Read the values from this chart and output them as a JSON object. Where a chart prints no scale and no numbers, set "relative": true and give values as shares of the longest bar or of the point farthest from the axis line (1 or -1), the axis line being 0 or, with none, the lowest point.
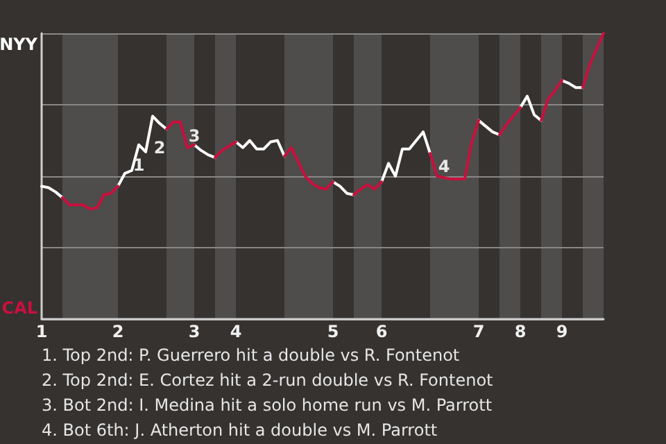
{
  "chart_data": {
    "type": "line",
    "relative": true,
    "categories": [
      "1",
      null,
      null,
      null,
      null,
      null,
      null,
      null,
      null,
      null,
      null,
      "2",
      null,
      null,
      null,
      null,
      null,
      null,
      null,
      null,
      null,
      null,
      "3",
      null,
      null,
      null,
      null,
      null,
      "4",
      null,
      null,
      null,
      null,
      null,
      null,
      null,
      null,
      null,
      null,
      null,
      null,
      null,
      "5",
      null,
      null,
      null,
      null,
      null,
      null,
      "6",
      null,
      null,
      null,
      null,
      null,
      null,
      null,
      null,
      null,
      null,
      null,
      null,
      null,
      "7",
      null,
      null,
      null,
      null,
      null,
      "8",
      null,
      null,
      null,
      null,
      null,
      "9",
      null,
      null,
      null,
      null,
      null,
      null
    ],
    "series": [
      {
        "name": "NYY",
        "color": "#ffffff",
        "values": [
          0.465,
          0.46,
          0.445,
          0.425,
          null,
          null,
          null,
          null,
          null,
          null,
          null,
          0.465,
          0.51,
          0.52,
          0.61,
          0.585,
          0.71,
          0.685,
          0.665,
          null,
          null,
          null,
          0.61,
          0.59,
          0.575,
          0.565,
          null,
          null,
          0.62,
          0.6,
          0.625,
          0.595,
          0.595,
          0.62,
          0.625,
          0.57,
          null,
          null,
          null,
          null,
          null,
          null,
          0.48,
          0.465,
          0.44,
          0.435,
          null,
          null,
          null,
          0.48,
          0.545,
          0.5,
          0.595,
          0.595,
          0.625,
          0.655,
          0.58,
          null,
          null,
          null,
          null,
          null,
          null,
          0.695,
          0.675,
          0.655,
          0.645,
          null,
          null,
          0.74,
          0.78,
          0.715,
          0.695,
          null,
          null,
          0.835,
          0.825,
          0.81,
          0.81,
          null,
          null,
          null
        ]
      },
      {
        "name": "CAL",
        "color": "#c8103e",
        "values": [
          null,
          null,
          null,
          0.425,
          0.4,
          0.4,
          0.4,
          0.385,
          0.39,
          0.435,
          0.44,
          0.465,
          null,
          null,
          null,
          null,
          null,
          null,
          0.665,
          0.69,
          0.69,
          0.6,
          0.61,
          null,
          null,
          0.565,
          0.59,
          0.605,
          0.62,
          null,
          null,
          null,
          null,
          null,
          null,
          0.57,
          0.6,
          0.55,
          0.5,
          0.475,
          0.46,
          0.455,
          0.48,
          null,
          null,
          0.435,
          0.455,
          0.47,
          0.455,
          0.48,
          null,
          null,
          null,
          null,
          null,
          null,
          0.58,
          0.5,
          0.495,
          0.49,
          0.49,
          0.49,
          0.62,
          0.695,
          null,
          null,
          0.645,
          0.68,
          0.71,
          0.74,
          null,
          null,
          0.695,
          0.77,
          0.8,
          0.835,
          null,
          null,
          0.81,
          0.89,
          0.945,
          1.0
        ]
      }
    ],
    "grid": "y",
    "legend": false,
    "line_style": "solid",
    "annotations": [
      "1",
      "2",
      "3",
      "4",
      "1. Top 2nd: P. Guerrero hit a double vs R. Fontenot",
      "2. Top 2nd: E. Cortez hit a 2-run double vs R. Fontenot",
      "3. Bot 2nd: I. Medina hit a solo home run vs M. Parrott",
      "4. Bot 6th: J. Atherton hit a double vs M. Parrott"
    ]
  }
}
